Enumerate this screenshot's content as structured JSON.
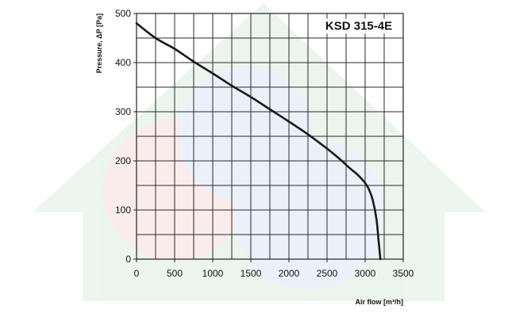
{
  "chart_data": {
    "type": "line",
    "model_label": "KSD 315-4E",
    "xlabel": "Air flow [m³/h]",
    "ylabel": "Pressure, ΔP [Pa]",
    "xlim": [
      0,
      3500
    ],
    "ylim": [
      0,
      500
    ],
    "x_ticks": [
      0,
      500,
      1000,
      1500,
      2000,
      2500,
      3000,
      3500
    ],
    "y_ticks": [
      0,
      100,
      200,
      300,
      400,
      500
    ],
    "x_tick_labels": [
      "0",
      "500",
      "1000",
      "1500",
      "2000",
      "2500",
      "3000",
      "3500"
    ],
    "y_tick_labels": [
      "0",
      "100",
      "200",
      "300",
      "400",
      "500"
    ],
    "grid": true,
    "grid_step_x": 250,
    "grid_step_y": 50,
    "series": [
      {
        "x": [
          0,
          250,
          500,
          750,
          1000,
          1250,
          1500,
          1750,
          2000,
          2250,
          2500,
          2650,
          2800,
          2900,
          3000,
          3050,
          3100,
          3150,
          3175,
          3200
        ],
        "y": [
          480,
          450,
          428,
          402,
          378,
          353,
          330,
          305,
          280,
          254,
          225,
          206,
          185,
          172,
          155,
          142,
          120,
          80,
          40,
          0
        ],
        "color": "#1a1a1a"
      }
    ]
  }
}
